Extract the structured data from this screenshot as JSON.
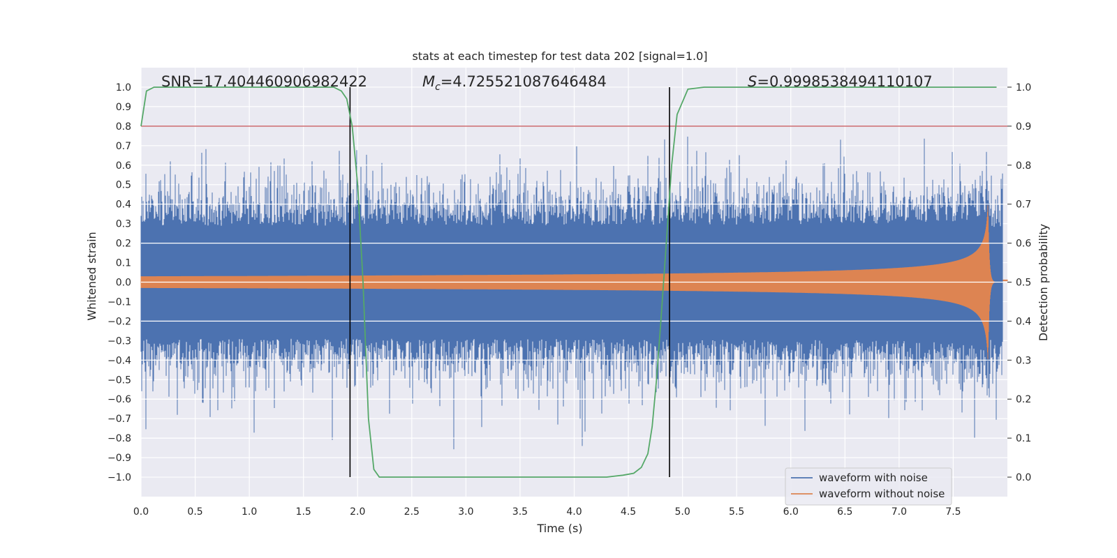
{
  "chart_data": {
    "type": "line",
    "title": "stats at each timestep for test data 202 [signal=1.0]",
    "xlabel": "Time (s)",
    "ylabel": "Whitened strain",
    "y2label": "Detection probability",
    "xlim": [
      0.0,
      8.0
    ],
    "ylim": [
      -1.1,
      1.1
    ],
    "y2lim": [
      -0.05,
      1.05
    ],
    "x_ticks": [
      "0.0",
      "0.5",
      "1.0",
      "1.5",
      "2.0",
      "2.5",
      "3.0",
      "3.5",
      "4.0",
      "4.5",
      "5.0",
      "5.5",
      "6.0",
      "6.5",
      "7.0",
      "7.5"
    ],
    "y_ticks": [
      "1.0",
      "0.9",
      "0.8",
      "0.7",
      "0.6",
      "0.5",
      "0.4",
      "0.3",
      "0.2",
      "0.1",
      "0.0",
      "-0.1",
      "-0.2",
      "-0.3",
      "-0.4",
      "-0.5",
      "-0.6",
      "-0.7",
      "-0.8",
      "-0.9",
      "-1.0"
    ],
    "y2_ticks": [
      "1.0",
      "0.9",
      "0.8",
      "0.7",
      "0.6",
      "0.5",
      "0.4",
      "0.3",
      "0.2",
      "0.1",
      "0.0"
    ],
    "annotations": {
      "snr": "SNR=17.404460906982422",
      "mc_symbol": "M",
      "mc_sub": "c",
      "mc_value": "=4.725521087646484",
      "s_symbol": "S",
      "s_value": "=0.9998538494110107"
    },
    "threshold": {
      "value": 0.9,
      "axis": "y2",
      "color": "#c44e52"
    },
    "vertical_lines": [
      1.93,
      4.88
    ],
    "series": [
      {
        "name": "waveform with noise",
        "color": "#4c72b0",
        "envelope_noise_sd": 0.3,
        "peak_range": [
          -1.0,
          0.95
        ]
      },
      {
        "name": "waveform without noise",
        "color": "#dd8452",
        "chirp_start_amplitude": 0.03,
        "chirp_peak_amplitude": 0.42,
        "merger_time": 7.82,
        "end_time": 7.96
      },
      {
        "name": "detection probability",
        "color": "#55a868",
        "axis": "y2",
        "x": [
          0.0,
          0.05,
          0.12,
          0.2,
          0.5,
          1.0,
          1.5,
          1.78,
          1.85,
          1.9,
          1.95,
          2.0,
          2.05,
          2.1,
          2.15,
          2.2,
          2.3,
          2.5,
          3.0,
          3.5,
          4.0,
          4.3,
          4.45,
          4.55,
          4.62,
          4.68,
          4.72,
          4.76,
          4.8,
          4.85,
          4.9,
          4.95,
          5.05,
          5.2,
          6.0,
          7.0,
          7.9
        ],
        "y": [
          0.9,
          0.99,
          1.0,
          1.0,
          1.0,
          1.0,
          1.0,
          1.0,
          0.99,
          0.97,
          0.9,
          0.75,
          0.5,
          0.15,
          0.02,
          0.0,
          0.0,
          0.0,
          0.0,
          0.0,
          0.0,
          0.0,
          0.005,
          0.01,
          0.025,
          0.06,
          0.13,
          0.25,
          0.4,
          0.6,
          0.8,
          0.93,
          0.995,
          1.0,
          1.0,
          1.0,
          1.0
        ]
      }
    ],
    "legend_location": "lower right",
    "grid": true
  }
}
